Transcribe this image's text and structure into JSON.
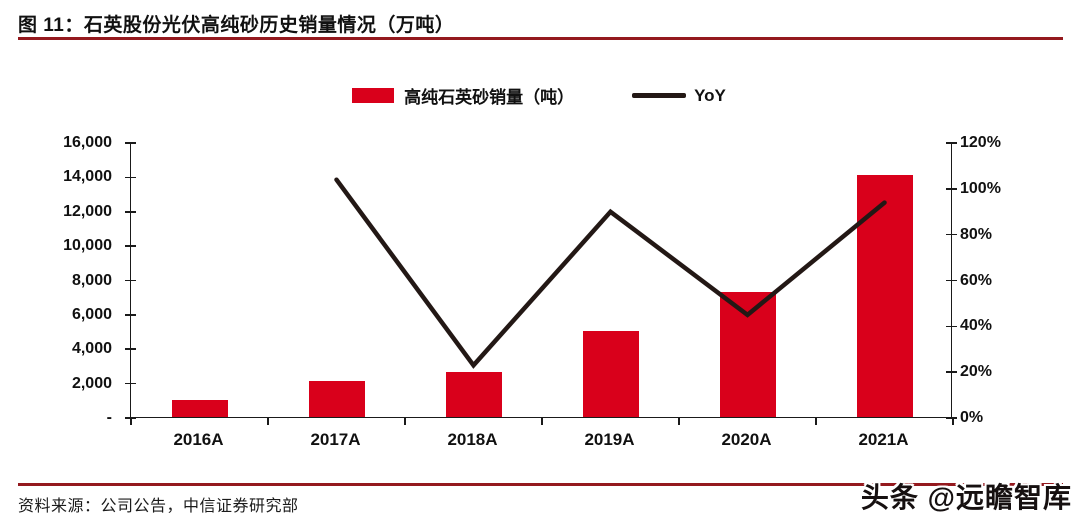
{
  "page": {
    "title": "图 11：石英股份光伏高纯砂历史销量情况（万吨）",
    "source": "资料来源：公司公告，中信证券研究部",
    "watermark": "头条 @远瞻智库"
  },
  "legend": {
    "bar_label": "高纯石英砂销量（吨）",
    "line_label": "YoY"
  },
  "colors": {
    "bar": "#d9001b",
    "line": "#231815",
    "rule": "#94191e",
    "axis": "#1a1a1a"
  },
  "chart_data": {
    "type": "bar",
    "subtype": "combo bar+line, dual axis",
    "title": "图 11：石英股份光伏高纯砂历史销量情况（万吨）",
    "categories": [
      "2016A",
      "2017A",
      "2018A",
      "2019A",
      "2020A",
      "2021A"
    ],
    "series": [
      {
        "name": "高纯石英砂销量（吨）",
        "type": "bar",
        "axis": "left",
        "color": "#d9001b",
        "values": [
          1000,
          2100,
          2600,
          5000,
          7300,
          14100
        ]
      },
      {
        "name": "YoY",
        "type": "line",
        "axis": "right",
        "color": "#231815",
        "unit": "%",
        "values": [
          null,
          104,
          23,
          90,
          45,
          94
        ]
      }
    ],
    "left_axis": {
      "min": 0,
      "max": 16000,
      "step": 2000,
      "tick_labels": [
        "16,000",
        "14,000",
        "12,000",
        "10,000",
        "8,000",
        "6,000",
        "4,000",
        "2,000",
        "-"
      ]
    },
    "right_axis": {
      "min": 0,
      "max": 120,
      "step": 20,
      "tick_labels": [
        "120%",
        "100%",
        "80%",
        "60%",
        "40%",
        "20%",
        "0%"
      ]
    },
    "grid": false,
    "legend_position": "top-center"
  }
}
